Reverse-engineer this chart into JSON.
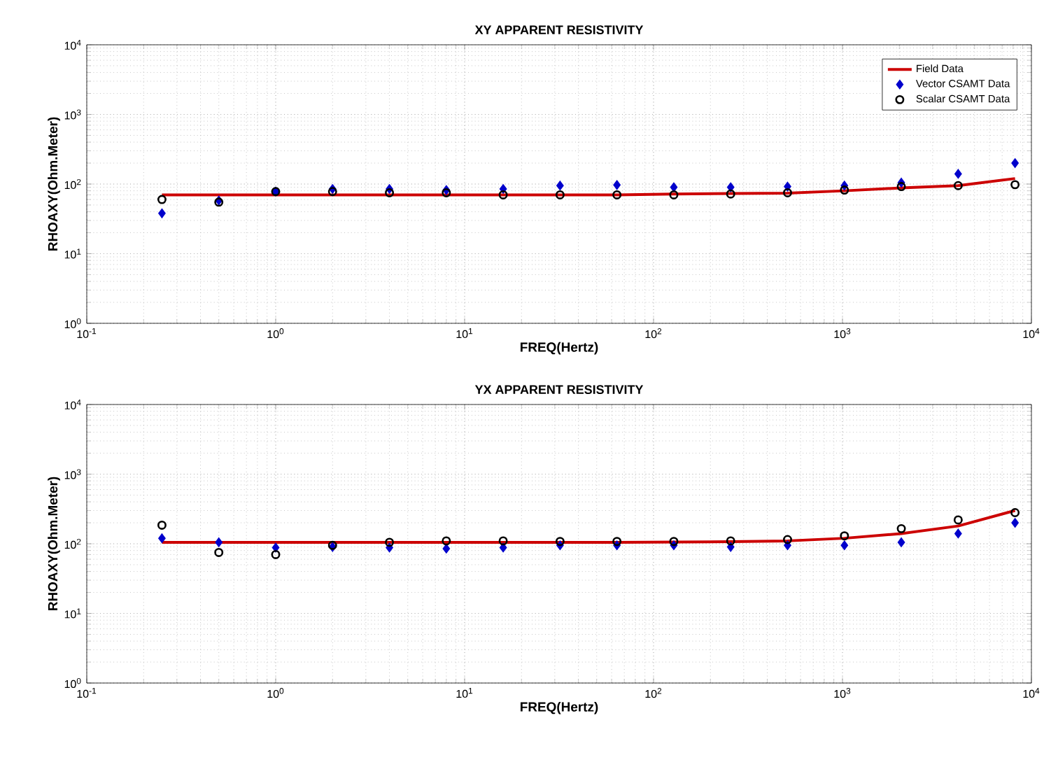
{
  "chart_data": [
    {
      "type": "scatter",
      "title": "XY APPARENT RESISTIVITY",
      "xlabel": "FREQ(Hertz)",
      "ylabel": "RHOAXY(Ohm.Meter)",
      "log": "xy",
      "grid": true,
      "legend": "top right",
      "xlim": [
        0.1,
        10000
      ],
      "ylim": [
        1,
        10000
      ],
      "xticks": [
        {
          "value": 0.1,
          "label": "10$^{-1}$"
        },
        {
          "value": 1,
          "label": "10$^{0}$"
        },
        {
          "value": 10,
          "label": "10$^{1}$"
        },
        {
          "value": 100,
          "label": "10$^{2}$"
        },
        {
          "value": 1000,
          "label": "10$^{3}$"
        },
        {
          "value": 10000,
          "label": "10$^{4}$"
        }
      ],
      "yticks": [
        {
          "value": 1,
          "label": "10$^{0}$"
        },
        {
          "value": 10,
          "label": "10$^{1}$"
        },
        {
          "value": 100,
          "label": "10$^{2}$"
        },
        {
          "value": 1000,
          "label": "10$^{3}$"
        },
        {
          "value": 10000,
          "label": "10$^{4}$"
        }
      ],
      "x": [
        0.25,
        0.5,
        1,
        2,
        4,
        8,
        16,
        32,
        64,
        128,
        256,
        512,
        1024,
        2048,
        4096,
        8192
      ],
      "series": [
        {
          "name": "Field Data",
          "type": "line",
          "marker": "none",
          "color": "#cc0000",
          "values": [
            70,
            70,
            70,
            70,
            70,
            70,
            70,
            70,
            70,
            72,
            73,
            74,
            80,
            88,
            95,
            120
          ]
        },
        {
          "name": "Vector CSAMT Data",
          "marker": "diamond",
          "color": "#0000cc",
          "values": [
            38,
            58,
            78,
            85,
            85,
            82,
            85,
            95,
            97,
            90,
            90,
            92,
            95,
            105,
            140,
            200
          ]
        },
        {
          "name": "Scalar CSAMT Data",
          "marker": "circle",
          "color": "#000000",
          "values": [
            60,
            55,
            78,
            78,
            75,
            75,
            70,
            70,
            70,
            70,
            72,
            75,
            82,
            92,
            95,
            98
          ]
        }
      ]
    },
    {
      "type": "scatter",
      "title": "YX APPARENT RESISTIVITY",
      "xlabel": "FREQ(Hertz)",
      "ylabel": "RHOAXY(Ohm.Meter)",
      "log": "xy",
      "grid": true,
      "xlim": [
        0.1,
        10000
      ],
      "ylim": [
        1,
        10000
      ],
      "xticks": [
        {
          "value": 0.1,
          "label": "10$^{-1}$"
        },
        {
          "value": 1,
          "label": "10$^{0}$"
        },
        {
          "value": 10,
          "label": "10$^{1}$"
        },
        {
          "value": 100,
          "label": "10$^{2}$"
        },
        {
          "value": 1000,
          "label": "10$^{3}$"
        },
        {
          "value": 10000,
          "label": "10$^{4}$"
        }
      ],
      "yticks": [
        {
          "value": 1,
          "label": "10$^{0}$"
        },
        {
          "value": 10,
          "label": "10$^{1}$"
        },
        {
          "value": 100,
          "label": "10$^{2}$"
        },
        {
          "value": 1000,
          "label": "10$^{3}$"
        },
        {
          "value": 10000,
          "label": "10$^{4}$"
        }
      ],
      "x": [
        0.25,
        0.5,
        1,
        2,
        4,
        8,
        16,
        32,
        64,
        128,
        256,
        512,
        1024,
        2048,
        4096,
        8192
      ],
      "series": [
        {
          "type": "line",
          "marker": "none",
          "color": "#cc0000",
          "values": [
            105,
            105,
            105,
            105,
            105,
            105,
            105,
            105,
            105,
            106,
            107,
            110,
            120,
            140,
            180,
            300
          ]
        },
        {
          "marker": "diamond",
          "color": "#0000cc",
          "values": [
            120,
            105,
            88,
            90,
            88,
            85,
            88,
            95,
            95,
            95,
            90,
            95,
            95,
            105,
            140,
            200
          ]
        },
        {
          "marker": "circle",
          "color": "#000000",
          "values": [
            185,
            75,
            70,
            95,
            105,
            110,
            110,
            108,
            108,
            108,
            110,
            115,
            130,
            165,
            220,
            280
          ]
        }
      ]
    }
  ]
}
